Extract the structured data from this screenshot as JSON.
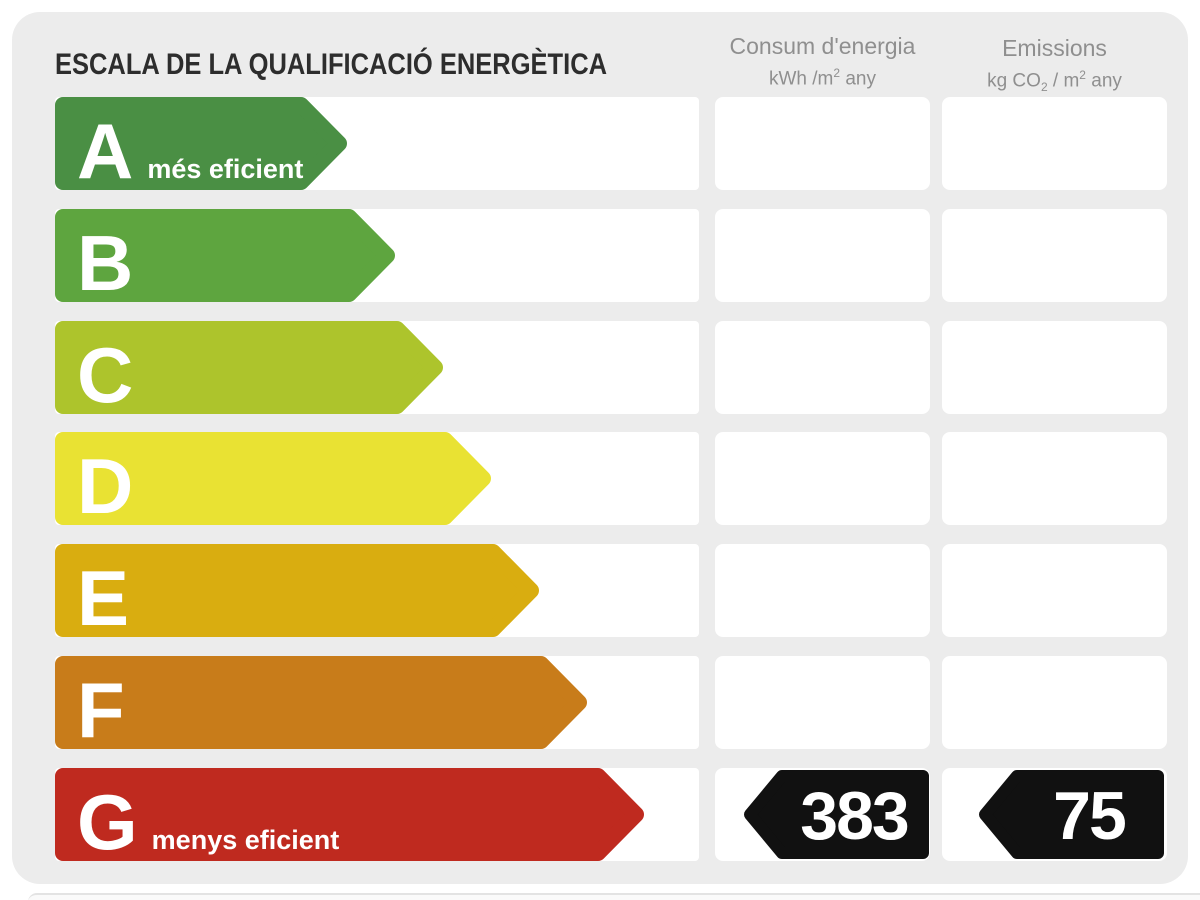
{
  "title": "ESCALA DE LA QUALIFICACIÓ ENERGÈTICA",
  "columns": {
    "consum": {
      "title": "Consum d'energia",
      "unit": [
        {
          "t": "kWh /m"
        },
        {
          "sup": "2"
        },
        {
          "t": "  any"
        }
      ]
    },
    "emissions": {
      "title": "Emissions",
      "unit": [
        {
          "t": "kg CO"
        },
        {
          "sub": "2"
        },
        {
          "t": " / m"
        },
        {
          "sup": "2"
        },
        {
          "t": "  any"
        }
      ]
    }
  },
  "scale": {
    "badge_color": "#111111",
    "rows": [
      {
        "grade": "A",
        "sublabel": "més eficient",
        "color": "#4a8f44",
        "arrow_width": 292,
        "consum": "",
        "emissions": ""
      },
      {
        "grade": "B",
        "sublabel": "",
        "color": "#5ea53f",
        "arrow_width": 340,
        "consum": "",
        "emissions": ""
      },
      {
        "grade": "C",
        "sublabel": "",
        "color": "#adc42c",
        "arrow_width": 388,
        "consum": "",
        "emissions": ""
      },
      {
        "grade": "D",
        "sublabel": "",
        "color": "#e9e233",
        "arrow_width": 436,
        "consum": "",
        "emissions": ""
      },
      {
        "grade": "E",
        "sublabel": "",
        "color": "#d9ad10",
        "arrow_width": 484,
        "consum": "",
        "emissions": ""
      },
      {
        "grade": "F",
        "sublabel": "",
        "color": "#c87c1a",
        "arrow_width": 532,
        "consum": "",
        "emissions": ""
      },
      {
        "grade": "G",
        "sublabel": "menys eficient",
        "color": "#bf2a1f",
        "arrow_width": 589,
        "consum": "383",
        "emissions": "75"
      }
    ]
  },
  "chart_data": {
    "type": "bar",
    "title": "ESCALA DE LA QUALIFICACIÓ ENERGÈTICA",
    "categories": [
      "A",
      "B",
      "C",
      "D",
      "E",
      "F",
      "G"
    ],
    "series": [
      {
        "name": "Consum d'energia (kWh/m2 any)",
        "values": [
          null,
          null,
          null,
          null,
          null,
          null,
          383
        ]
      },
      {
        "name": "Emissions (kg CO2/m2 any)",
        "values": [
          null,
          null,
          null,
          null,
          null,
          null,
          75
        ]
      }
    ],
    "rated_grade": "G",
    "grade_colors": {
      "A": "#4a8f44",
      "B": "#5ea53f",
      "C": "#adc42c",
      "D": "#e9e233",
      "E": "#d9ad10",
      "F": "#c87c1a",
      "G": "#bf2a1f"
    },
    "annotations": [
      "A = més eficient",
      "G = menys eficient"
    ],
    "legend_position": "top",
    "grid": false
  }
}
